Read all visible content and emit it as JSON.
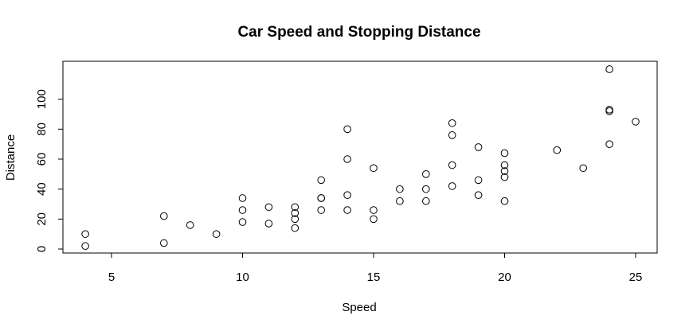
{
  "chart_data": {
    "type": "scatter",
    "title": "Car Speed and Stopping Distance",
    "xlabel": "Speed",
    "ylabel": "Distance",
    "xlim": [
      4,
      25
    ],
    "ylim": [
      0,
      120
    ],
    "xticks": [
      5,
      10,
      15,
      20,
      25
    ],
    "yticks": [
      0,
      20,
      40,
      60,
      80,
      100
    ],
    "grid": false,
    "legend": "none",
    "points": [
      {
        "x": 4,
        "y": 2
      },
      {
        "x": 4,
        "y": 10
      },
      {
        "x": 7,
        "y": 4
      },
      {
        "x": 7,
        "y": 22
      },
      {
        "x": 8,
        "y": 16
      },
      {
        "x": 9,
        "y": 10
      },
      {
        "x": 10,
        "y": 18
      },
      {
        "x": 10,
        "y": 26
      },
      {
        "x": 10,
        "y": 34
      },
      {
        "x": 11,
        "y": 17
      },
      {
        "x": 11,
        "y": 28
      },
      {
        "x": 12,
        "y": 14
      },
      {
        "x": 12,
        "y": 20
      },
      {
        "x": 12,
        "y": 24
      },
      {
        "x": 12,
        "y": 28
      },
      {
        "x": 13,
        "y": 26
      },
      {
        "x": 13,
        "y": 34
      },
      {
        "x": 13,
        "y": 34
      },
      {
        "x": 13,
        "y": 46
      },
      {
        "x": 14,
        "y": 26
      },
      {
        "x": 14,
        "y": 36
      },
      {
        "x": 14,
        "y": 60
      },
      {
        "x": 14,
        "y": 80
      },
      {
        "x": 15,
        "y": 20
      },
      {
        "x": 15,
        "y": 26
      },
      {
        "x": 15,
        "y": 54
      },
      {
        "x": 16,
        "y": 32
      },
      {
        "x": 16,
        "y": 40
      },
      {
        "x": 17,
        "y": 32
      },
      {
        "x": 17,
        "y": 40
      },
      {
        "x": 17,
        "y": 50
      },
      {
        "x": 18,
        "y": 42
      },
      {
        "x": 18,
        "y": 56
      },
      {
        "x": 18,
        "y": 76
      },
      {
        "x": 18,
        "y": 84
      },
      {
        "x": 19,
        "y": 36
      },
      {
        "x": 19,
        "y": 46
      },
      {
        "x": 19,
        "y": 68
      },
      {
        "x": 20,
        "y": 32
      },
      {
        "x": 20,
        "y": 48
      },
      {
        "x": 20,
        "y": 52
      },
      {
        "x": 20,
        "y": 56
      },
      {
        "x": 20,
        "y": 64
      },
      {
        "x": 22,
        "y": 66
      },
      {
        "x": 23,
        "y": 54
      },
      {
        "x": 24,
        "y": 70
      },
      {
        "x": 24,
        "y": 92
      },
      {
        "x": 24,
        "y": 93
      },
      {
        "x": 24,
        "y": 120
      },
      {
        "x": 25,
        "y": 85
      }
    ],
    "point_style": "open-circle",
    "point_color": "#000000"
  }
}
